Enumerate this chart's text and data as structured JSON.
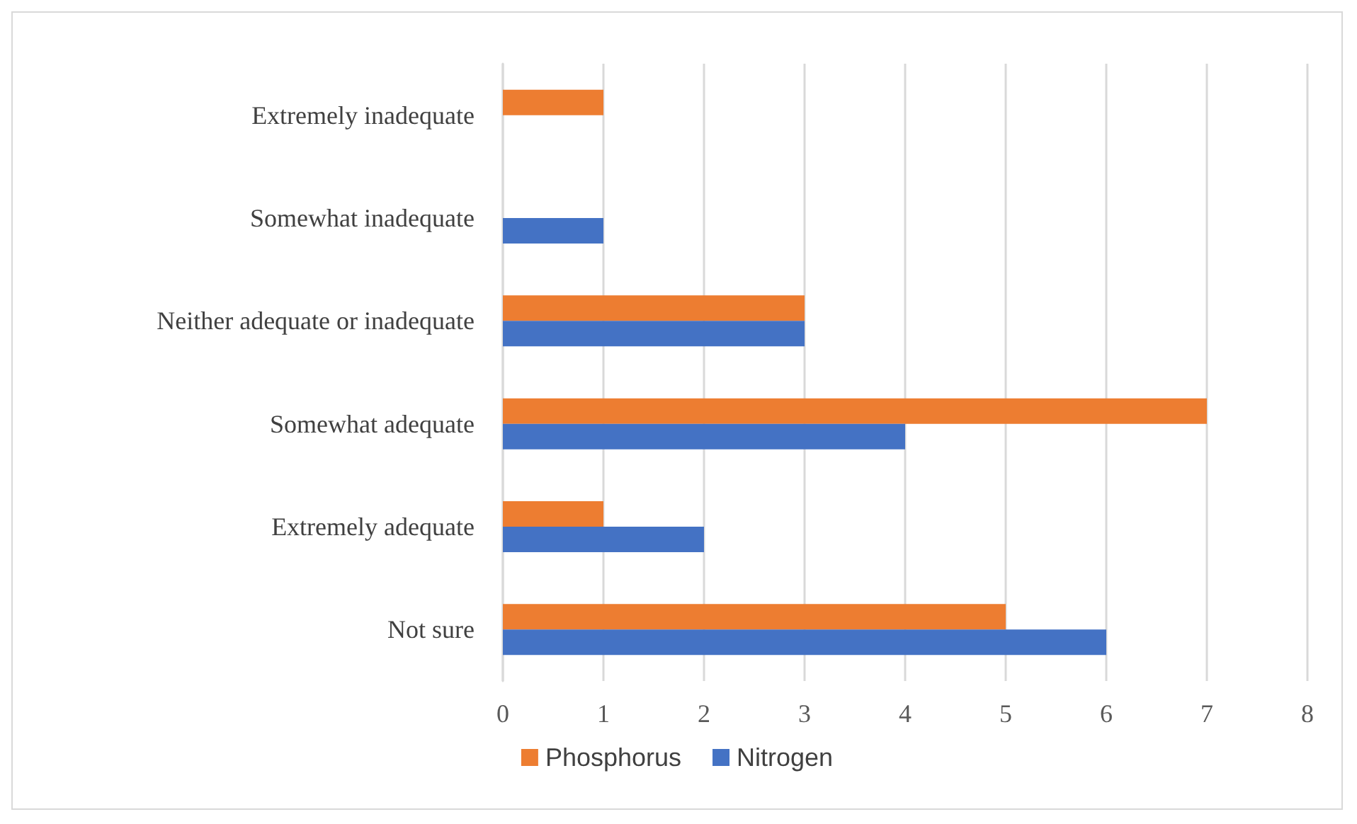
{
  "chart_data": {
    "type": "bar",
    "orientation": "horizontal",
    "categories": [
      "Extremely inadequate",
      "Somewhat inadequate",
      "Neither adequate or inadequate",
      "Somewhat adequate",
      "Extremely adequate",
      "Not sure"
    ],
    "series": [
      {
        "name": "Phosphorus",
        "color": "#ed7d31",
        "values": [
          1,
          0,
          3,
          7,
          1,
          5
        ]
      },
      {
        "name": "Nitrogen",
        "color": "#4472c4",
        "values": [
          0,
          1,
          3,
          4,
          2,
          6
        ]
      }
    ],
    "xlim": [
      0,
      8
    ],
    "xticks": [
      0,
      1,
      2,
      3,
      4,
      5,
      6,
      7,
      8
    ],
    "grid": "x",
    "legend": "bottom"
  }
}
